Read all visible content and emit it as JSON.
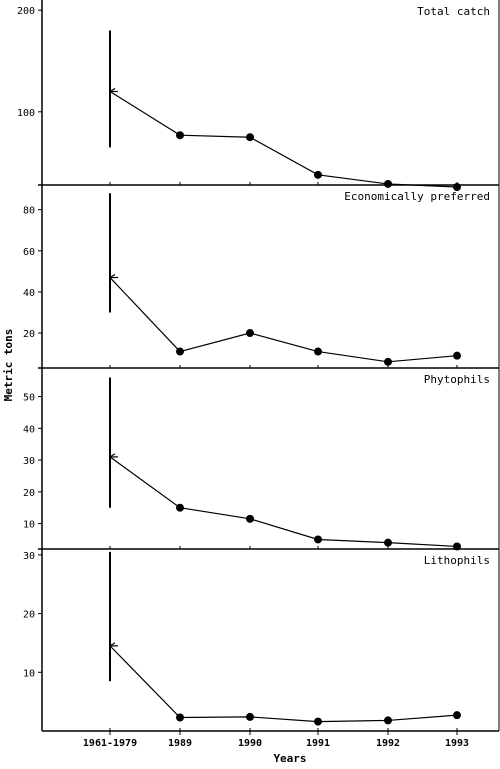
{
  "chart_data": {
    "type": "line",
    "xlabel": "Years",
    "ylabel": "Metric tons",
    "categories": [
      "1961-1979",
      "1989",
      "1990",
      "1991",
      "1992",
      "1993"
    ],
    "panels": [
      {
        "title": "Total catch",
        "ylim": [
          28,
          210
        ],
        "yticks": [
          100,
          200
        ],
        "baseline_range": [
          65,
          180
        ],
        "values": [
          120,
          77,
          75,
          38,
          29,
          26
        ]
      },
      {
        "title": "Economically preferred",
        "ylim": [
          3,
          92
        ],
        "yticks": [
          20,
          40,
          60,
          80
        ],
        "baseline_range": [
          30,
          88
        ],
        "values": [
          47,
          11,
          20,
          11,
          6,
          9
        ]
      },
      {
        "title": "Phytophils",
        "ylim": [
          2,
          59
        ],
        "yticks": [
          10,
          20,
          30,
          40,
          50
        ],
        "baseline_range": [
          15,
          56
        ],
        "values": [
          31,
          15,
          11.5,
          5,
          4,
          2.8
        ]
      },
      {
        "title": "Lithophils",
        "ylim": [
          0,
          31
        ],
        "yticks": [
          10,
          20,
          30
        ],
        "baseline_range": [
          8.5,
          30.5
        ],
        "values": [
          14.5,
          2.3,
          2.4,
          1.6,
          1.8,
          2.7
        ]
      }
    ]
  }
}
